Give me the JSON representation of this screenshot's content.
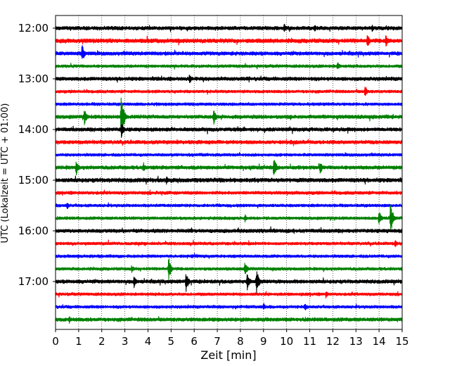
{
  "chart_data": {
    "type": "line",
    "subtype": "helicorder",
    "title": "",
    "xlabel": "Zeit  [min]",
    "ylabel": "UTC (Lokalzeit = UTC + 01:00)",
    "xlim": [
      0,
      15
    ],
    "x_ticks": [
      "0",
      "1",
      "2",
      "3",
      "4",
      "5",
      "6",
      "7",
      "8",
      "9",
      "10",
      "11",
      "12",
      "13",
      "14",
      "15"
    ],
    "y_ticks": [
      "12:00",
      "13:00",
      "14:00",
      "15:00",
      "16:00",
      "17:00"
    ],
    "grid": "vertical dotted at each minute",
    "trace_interval_minutes": 15,
    "trace_color_cycle": [
      "#000000",
      "#ff0000",
      "#0000ff",
      "#008000"
    ],
    "traces": [
      {
        "start": "12:00",
        "color": "#000000",
        "amplitude": 0.15,
        "events": [
          {
            "t": 9.9,
            "amp": 0.35
          },
          {
            "t": 11.2,
            "amp": 0.3
          },
          {
            "t": 13.7,
            "amp": 0.25
          }
        ]
      },
      {
        "start": "12:15",
        "color": "#ff0000",
        "amplitude": 0.17,
        "events": [
          {
            "t": 13.5,
            "amp": 0.55
          },
          {
            "t": 14.3,
            "amp": 0.5
          }
        ]
      },
      {
        "start": "12:30",
        "color": "#0000ff",
        "amplitude": 0.15,
        "events": [
          {
            "t": 1.15,
            "amp": 0.7
          }
        ]
      },
      {
        "start": "12:45",
        "color": "#008000",
        "amplitude": 0.12,
        "events": [
          {
            "t": 12.2,
            "amp": 0.35
          }
        ]
      },
      {
        "start": "13:00",
        "color": "#000000",
        "amplitude": 0.15,
        "events": [
          {
            "t": 5.8,
            "amp": 0.4
          }
        ]
      },
      {
        "start": "13:15",
        "color": "#ff0000",
        "amplitude": 0.12,
        "events": [
          {
            "t": 13.4,
            "amp": 0.45
          }
        ]
      },
      {
        "start": "13:30",
        "color": "#0000ff",
        "amplitude": 0.12,
        "events": []
      },
      {
        "start": "13:45",
        "color": "#008000",
        "amplitude": 0.15,
        "events": [
          {
            "t": 1.25,
            "amp": 0.6
          },
          {
            "t": 2.85,
            "amp": 1.9
          },
          {
            "t": 6.85,
            "amp": 0.55
          }
        ]
      },
      {
        "start": "14:00",
        "color": "#000000",
        "amplitude": 0.15,
        "events": [
          {
            "t": 2.85,
            "amp": 0.6
          }
        ]
      },
      {
        "start": "14:15",
        "color": "#ff0000",
        "amplitude": 0.15,
        "events": []
      },
      {
        "start": "14:30",
        "color": "#0000ff",
        "amplitude": 0.12,
        "events": []
      },
      {
        "start": "14:45",
        "color": "#008000",
        "amplitude": 0.15,
        "events": [
          {
            "t": 0.9,
            "amp": 0.6
          },
          {
            "t": 3.8,
            "amp": 0.4
          },
          {
            "t": 9.45,
            "amp": 0.85
          },
          {
            "t": 11.45,
            "amp": 0.5
          }
        ]
      },
      {
        "start": "15:00",
        "color": "#000000",
        "amplitude": 0.17,
        "events": [
          {
            "t": 4.8,
            "amp": 0.3
          }
        ]
      },
      {
        "start": "15:15",
        "color": "#ff0000",
        "amplitude": 0.13,
        "events": []
      },
      {
        "start": "15:30",
        "color": "#0000ff",
        "amplitude": 0.12,
        "events": [
          {
            "t": 0.5,
            "amp": 0.3
          }
        ]
      },
      {
        "start": "15:45",
        "color": "#008000",
        "amplitude": 0.12,
        "events": [
          {
            "t": 8.2,
            "amp": 0.3
          },
          {
            "t": 14.0,
            "amp": 0.6
          },
          {
            "t": 14.5,
            "amp": 1.3
          }
        ]
      },
      {
        "start": "16:00",
        "color": "#000000",
        "amplitude": 0.15,
        "events": []
      },
      {
        "start": "16:15",
        "color": "#ff0000",
        "amplitude": 0.12,
        "events": [
          {
            "t": 14.7,
            "amp": 0.35
          }
        ]
      },
      {
        "start": "16:30",
        "color": "#0000ff",
        "amplitude": 0.12,
        "events": []
      },
      {
        "start": "16:45",
        "color": "#008000",
        "amplitude": 0.12,
        "events": [
          {
            "t": 3.3,
            "amp": 0.3
          },
          {
            "t": 4.9,
            "amp": 0.9
          },
          {
            "t": 8.2,
            "amp": 0.6
          }
        ]
      },
      {
        "start": "17:00",
        "color": "#000000",
        "amplitude": 0.15,
        "events": [
          {
            "t": 3.4,
            "amp": 0.45
          },
          {
            "t": 5.65,
            "amp": 0.8
          },
          {
            "t": 8.3,
            "amp": 0.7
          },
          {
            "t": 8.7,
            "amp": 1.0
          }
        ]
      },
      {
        "start": "17:15",
        "color": "#ff0000",
        "amplitude": 0.12,
        "events": [
          {
            "t": 11.7,
            "amp": 0.3
          }
        ]
      },
      {
        "start": "17:30",
        "color": "#0000ff",
        "amplitude": 0.12,
        "events": [
          {
            "t": 9.0,
            "amp": 0.3
          },
          {
            "t": 10.8,
            "amp": 0.3
          }
        ]
      },
      {
        "start": "17:45",
        "color": "#008000",
        "amplitude": 0.15,
        "events": [
          {
            "t": 0.6,
            "amp": 0.3
          }
        ]
      }
    ]
  }
}
